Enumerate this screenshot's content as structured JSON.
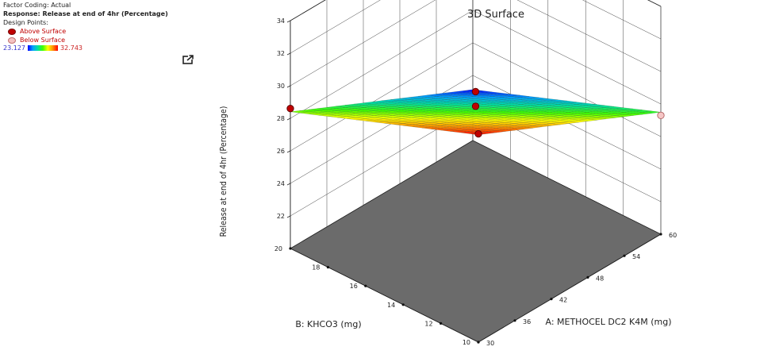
{
  "info": {
    "factor_coding": "Factor Coding: Actual",
    "response": "Response: Release at end of 4hr (Percentage)",
    "design_points": "Design Points:",
    "above_surface": "Above Surface",
    "below_surface": "Below Surface",
    "scale_min": "23.127",
    "scale_max": "32.743"
  },
  "chart_data": {
    "type": "surface3d",
    "title": "3D Surface",
    "xlabel": "A: METHOCEL DC2 K4M (mg)",
    "ylabel": "B: KHCO3 (mg)",
    "zlabel": "Release at end of 4hr (Percentage)",
    "x_ticks": [
      "30",
      "36",
      "42",
      "48",
      "54",
      "60"
    ],
    "y_ticks": [
      "10",
      "12",
      "14",
      "16",
      "18",
      "20"
    ],
    "z_ticks": [
      "22",
      "24",
      "26",
      "28",
      "30",
      "32",
      "34"
    ],
    "xlim": [
      30,
      60
    ],
    "ylim": [
      10,
      20
    ],
    "zlim": [
      20,
      34
    ],
    "surface_corners": [
      {
        "x": 30,
        "y": 10,
        "z": 32.74
      },
      {
        "x": 30,
        "y": 20,
        "z": 28.4
      },
      {
        "x": 60,
        "y": 10,
        "z": 27.5
      },
      {
        "x": 60,
        "y": 20,
        "z": 23.13
      }
    ],
    "design_points": [
      {
        "x": 30,
        "y": 10,
        "z": 32.8,
        "position": "above"
      },
      {
        "x": 30,
        "y": 20,
        "z": 28.6,
        "position": "above"
      },
      {
        "x": 45,
        "y": 15,
        "z": 29.2,
        "position": "above"
      },
      {
        "x": 45,
        "y": 15,
        "z": 28.3,
        "position": "above"
      },
      {
        "x": 60,
        "y": 10,
        "z": 27.3,
        "position": "below"
      }
    ],
    "contour_levels": [
      {
        "level": 30,
        "color": "#e6e600"
      },
      {
        "level": 28,
        "color": "#8ee600"
      },
      {
        "level": 26,
        "color": "#2de600"
      },
      {
        "level": 24.5,
        "color": "#00d6d6"
      }
    ],
    "color_scale": [
      "#0000ff",
      "#00a0ff",
      "#00e0a0",
      "#40ff00",
      "#ffff00",
      "#ff9000",
      "#ff0000"
    ]
  }
}
